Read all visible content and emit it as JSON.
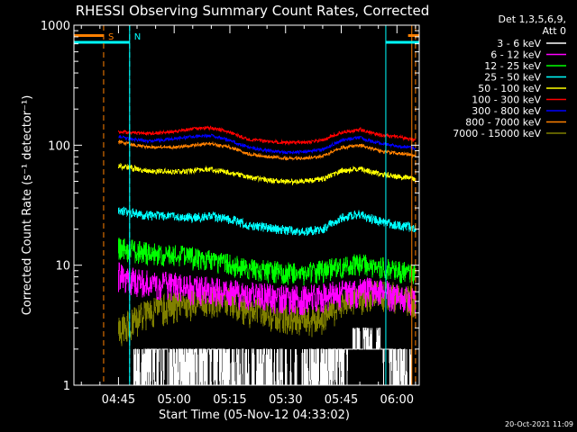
{
  "chart_data": {
    "type": "line",
    "title": "RHESSI Observing Summary Count Rates, Corrected",
    "xlabel": "Start Time (05-Nov-12 04:33:02)",
    "ylabel": "Corrected Count Rate (s⁻¹ detector⁻¹)",
    "yscale": "log",
    "ylim": [
      1,
      1000
    ],
    "xlim_minutes_after_0433": [
      0,
      93
    ],
    "x_ticks": [
      "04:45",
      "05:00",
      "05:15",
      "05:30",
      "05:45",
      "06:00"
    ],
    "y_ticks": [
      "1",
      "10",
      "100",
      "1000"
    ],
    "legend_title_lines": [
      "Det 1,3,5,6,9,",
      "Att 0"
    ],
    "legend_position": "top-right",
    "footer_date": "20-Oct-2021 11:09",
    "data_start": "04:45",
    "data_end": "06:05",
    "x_sample_times": [
      "04:45",
      "04:48",
      "04:53",
      "05:00",
      "05:05",
      "05:10",
      "05:15",
      "05:20",
      "05:25",
      "05:30",
      "05:35",
      "05:40",
      "05:45",
      "05:50",
      "05:53",
      "05:56",
      "06:00",
      "06:05"
    ],
    "series": [
      {
        "name": "3 - 6 keV",
        "color": "#ffffff",
        "values": [
          1,
          1,
          1.6,
          1.6,
          1.6,
          1.6,
          1.5,
          1.3,
          1.2,
          1.2,
          1.2,
          1.5,
          1.8,
          2.2,
          2.5,
          2.0,
          1.5,
          1.2
        ]
      },
      {
        "name": "6 - 12 keV",
        "color": "#ff00ff",
        "values": [
          8.3,
          7.6,
          7.1,
          6.8,
          6.4,
          6.2,
          5.9,
          5.7,
          5.5,
          5.4,
          5.3,
          5.5,
          5.9,
          6.0,
          6.2,
          6.0,
          5.5,
          5.0
        ]
      },
      {
        "name": "12 - 25 keV",
        "color": "#00ff00",
        "values": [
          14.0,
          13.5,
          12.8,
          12.2,
          11.6,
          11.0,
          10.2,
          9.5,
          9.0,
          8.8,
          8.6,
          9.0,
          9.8,
          10.3,
          10.0,
          9.6,
          9.0,
          8.5
        ]
      },
      {
        "name": "25 - 50 keV",
        "color": "#00ffff",
        "values": [
          28.5,
          27.5,
          26.0,
          25.5,
          25.0,
          25.5,
          24.0,
          21.5,
          20.5,
          19.5,
          19.0,
          20.0,
          25.0,
          26.5,
          24.5,
          23.0,
          21.5,
          20.5
        ]
      },
      {
        "name": "50 - 100 keV",
        "color": "#ffff00",
        "values": [
          67.0,
          65.0,
          61.0,
          60.0,
          61.0,
          63.0,
          59.0,
          54.0,
          51.0,
          50.0,
          50.0,
          52.0,
          61.0,
          64.0,
          60.0,
          57.0,
          55.0,
          52.0
        ]
      },
      {
        "name": "100 - 300 keV",
        "color": "#ff0000",
        "values": [
          130,
          128,
          125,
          130,
          137,
          140,
          128,
          112,
          108,
          105,
          106,
          110,
          128,
          135,
          128,
          120,
          118,
          110
        ]
      },
      {
        "name": "300 - 800 keV",
        "color": "#0000ff",
        "values": [
          118,
          113,
          108,
          113,
          118,
          120,
          110,
          96,
          90,
          87,
          88,
          92,
          110,
          116,
          108,
          103,
          98,
          95
        ]
      },
      {
        "name": "800 - 7000 keV",
        "color": "#ff8000",
        "values": [
          108,
          102,
          96,
          96,
          100,
          103,
          96,
          85,
          80,
          78,
          78,
          81,
          95,
          100,
          94,
          89,
          86,
          82
        ]
      },
      {
        "name": "7000 - 15000 keV",
        "color": "#808000",
        "values": [
          2.8,
          3.3,
          4.1,
          4.6,
          4.9,
          5.1,
          5.0,
          4.3,
          4.0,
          3.7,
          3.5,
          3.7,
          4.6,
          5.3,
          5.8,
          5.8,
          5.6,
          5.2
        ]
      }
    ],
    "annotations": [
      {
        "label": "S",
        "color": "#ff8000",
        "time": "04:41",
        "style": "dashed vertical line"
      },
      {
        "label": "N",
        "color": "#00ffff",
        "time": "04:48",
        "style": "dashed vertical line"
      }
    ],
    "time_markers": [
      {
        "color": "#00ffff",
        "times": [
          "04:33",
          "04:48",
          "05:57",
          "06:06"
        ],
        "style": "solid vertical lines; horizontal bar near 1000 from 04:33 to 04:48 and from 05:57 to 06:06"
      },
      {
        "color": "#ff8000",
        "times": [
          "06:04"
        ],
        "style": "solid vertical line; horizontal bar near 1000 from 04:33 to 04:41 and from 06:03 to 06:06"
      }
    ]
  }
}
